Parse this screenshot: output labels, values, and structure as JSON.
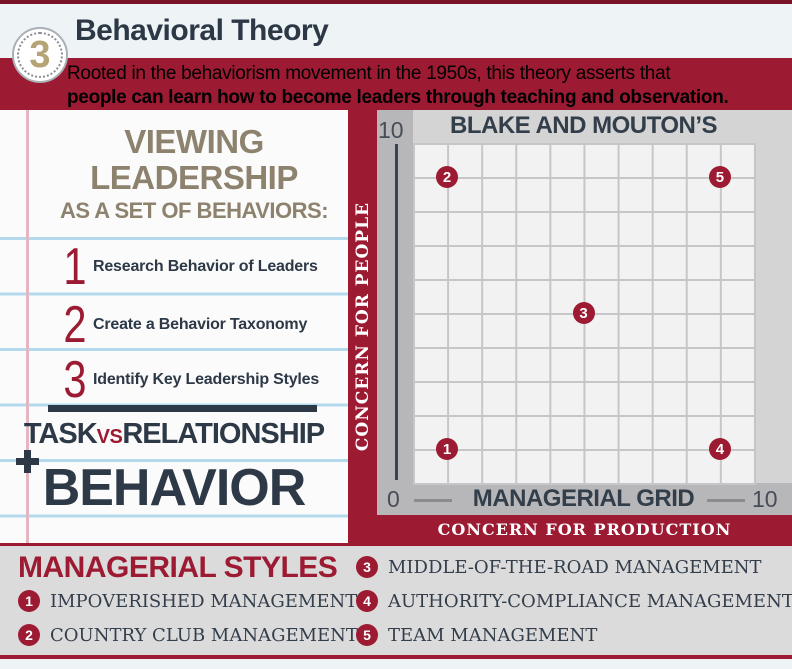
{
  "colors": {
    "crimson": "#9c1b33",
    "dark_maroon": "#7a1228",
    "navy": "#2d3947",
    "tan": "#8d826d",
    "badge_gold": "#b5a476",
    "notebook_blue": "#b5d9ec",
    "margin_pink": "#e3b6c2",
    "panel_gray": "#dbdbdc",
    "chart_outer_gray": "#b7b7b9",
    "chart_band_gray": "#d4d4d5",
    "grid_cell": "#f2f2f3",
    "grid_line": "#c6c6c9"
  },
  "header": {
    "badge": "3",
    "title": "Behavioral Theory",
    "subtitle_line1": "Rooted in the behaviorism movement in the 1950s, this theory asserts that",
    "subtitle_line2": "people can learn how to become leaders through teaching and observation."
  },
  "left_panel": {
    "heading_line1": "VIEWING",
    "heading_line2": "LEADERSHIP",
    "subheading": "AS A SET OF BEHAVIORS:",
    "plus_sign": "+",
    "steps": [
      {
        "num": "1",
        "label": "Research Behavior of Leaders"
      },
      {
        "num": "2",
        "label": "Create a Behavior Taxonomy"
      },
      {
        "num": "3",
        "label": "Identify Key Leadership Styles"
      }
    ],
    "vs_heading": {
      "left": "TASK",
      "vs": "VS",
      "right": "RELATIONSHIP"
    },
    "big_word": "BEHAVIOR"
  },
  "chart": {
    "title": "BLAKE AND MOUTON’S",
    "x_axis_title": "MANAGERIAL GRID",
    "ylabel": "CONCERN FOR PEOPLE",
    "xlabel": "CONCERN FOR PRODUCTION",
    "y_top_tick": "10",
    "origin_tick": "0",
    "x_right_tick": "10"
  },
  "chart_data": {
    "type": "scatter",
    "title": "BLAKE AND MOUTON'S MANAGERIAL GRID",
    "xlabel": "CONCERN FOR PRODUCTION",
    "ylabel": "CONCERN FOR PEOPLE",
    "xlim": [
      0,
      10
    ],
    "ylim": [
      0,
      10
    ],
    "grid": true,
    "points": [
      {
        "label": "1",
        "x": 1,
        "y": 1,
        "name": "Impoverished Management"
      },
      {
        "label": "2",
        "x": 1,
        "y": 9,
        "name": "Country Club Management"
      },
      {
        "label": "3",
        "x": 5,
        "y": 5,
        "name": "Middle-of-the-Road Management"
      },
      {
        "label": "4",
        "x": 9,
        "y": 1,
        "name": "Authority-Compliance Management"
      },
      {
        "label": "5",
        "x": 9,
        "y": 9,
        "name": "Team Management"
      }
    ]
  },
  "legend": {
    "title": "MANAGERIAL STYLES",
    "items": [
      {
        "num": "1",
        "label": "IMPOVERISHED MANAGEMENT"
      },
      {
        "num": "2",
        "label": "COUNTRY CLUB MANAGEMENT"
      },
      {
        "num": "3",
        "label": "MIDDLE-OF-THE-ROAD MANAGEMENT"
      },
      {
        "num": "4",
        "label": "AUTHORITY-COMPLIANCE MANAGEMENT"
      },
      {
        "num": "5",
        "label": "TEAM MANAGEMENT"
      }
    ]
  }
}
